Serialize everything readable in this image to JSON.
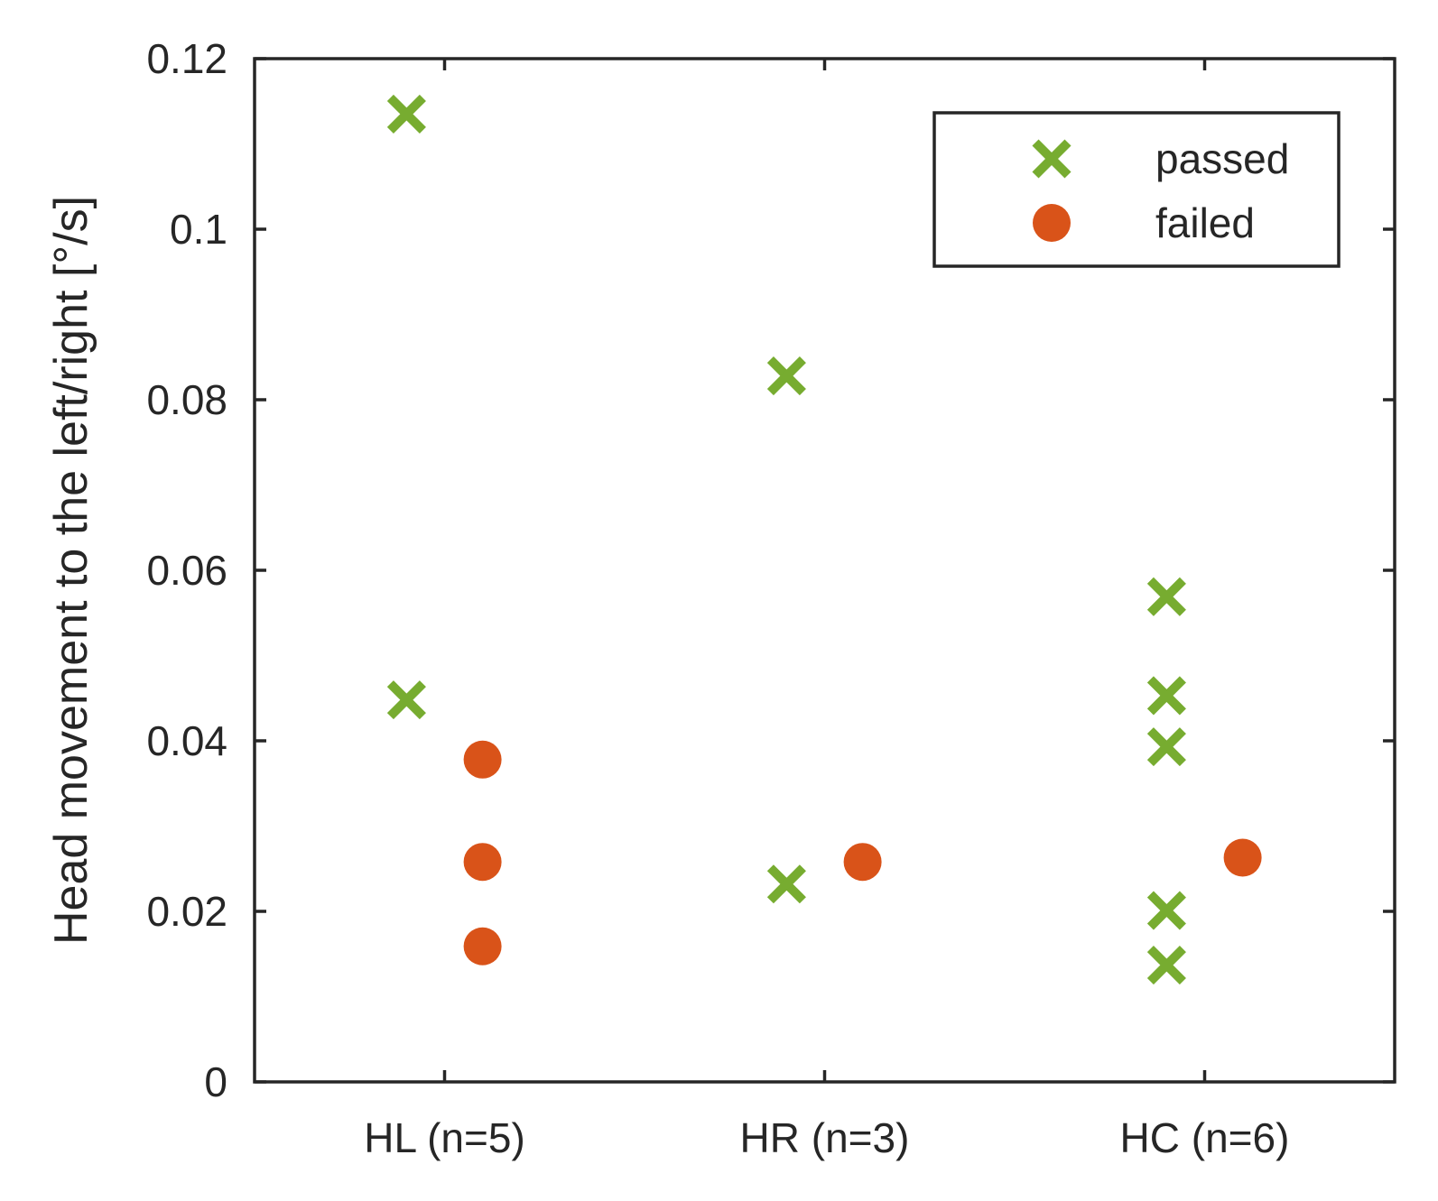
{
  "chart_data": {
    "type": "scatter",
    "title": "",
    "xlabel": "",
    "ylabel": "Head movement to the left/right [°/s]",
    "categories": [
      "HL (n=5)",
      "HR (n=3)",
      "HC (n=6)"
    ],
    "ylim": [
      0,
      0.12
    ],
    "yticks": [
      0,
      0.02,
      0.04,
      0.06,
      0.08,
      0.1,
      0.12
    ],
    "ytick_labels": [
      "0",
      "0.02",
      "0.04",
      "0.06",
      "0.08",
      "0.1",
      "0.12"
    ],
    "grid": false,
    "legend_position": "top-right",
    "series": [
      {
        "name": "passed",
        "marker": "x",
        "color": "#77AC30",
        "points": [
          {
            "category": "HL (n=5)",
            "offset": -0.1,
            "y": 0.1135
          },
          {
            "category": "HL (n=5)",
            "offset": -0.1,
            "y": 0.0448
          },
          {
            "category": "HR (n=3)",
            "offset": -0.1,
            "y": 0.0828
          },
          {
            "category": "HR (n=3)",
            "offset": -0.1,
            "y": 0.0232
          },
          {
            "category": "HC (n=6)",
            "offset": -0.1,
            "y": 0.0569
          },
          {
            "category": "HC (n=6)",
            "offset": -0.1,
            "y": 0.0453
          },
          {
            "category": "HC (n=6)",
            "offset": -0.1,
            "y": 0.0393
          },
          {
            "category": "HC (n=6)",
            "offset": -0.1,
            "y": 0.0201
          },
          {
            "category": "HC (n=6)",
            "offset": -0.1,
            "y": 0.0137
          }
        ]
      },
      {
        "name": "failed",
        "marker": "circle",
        "color": "#D95319",
        "points": [
          {
            "category": "HL (n=5)",
            "offset": 0.1,
            "y": 0.0378
          },
          {
            "category": "HL (n=5)",
            "offset": 0.1,
            "y": 0.0258
          },
          {
            "category": "HL (n=5)",
            "offset": 0.1,
            "y": 0.0159
          },
          {
            "category": "HR (n=3)",
            "offset": 0.1,
            "y": 0.0258
          },
          {
            "category": "HC (n=6)",
            "offset": 0.1,
            "y": 0.0263
          }
        ]
      }
    ]
  }
}
